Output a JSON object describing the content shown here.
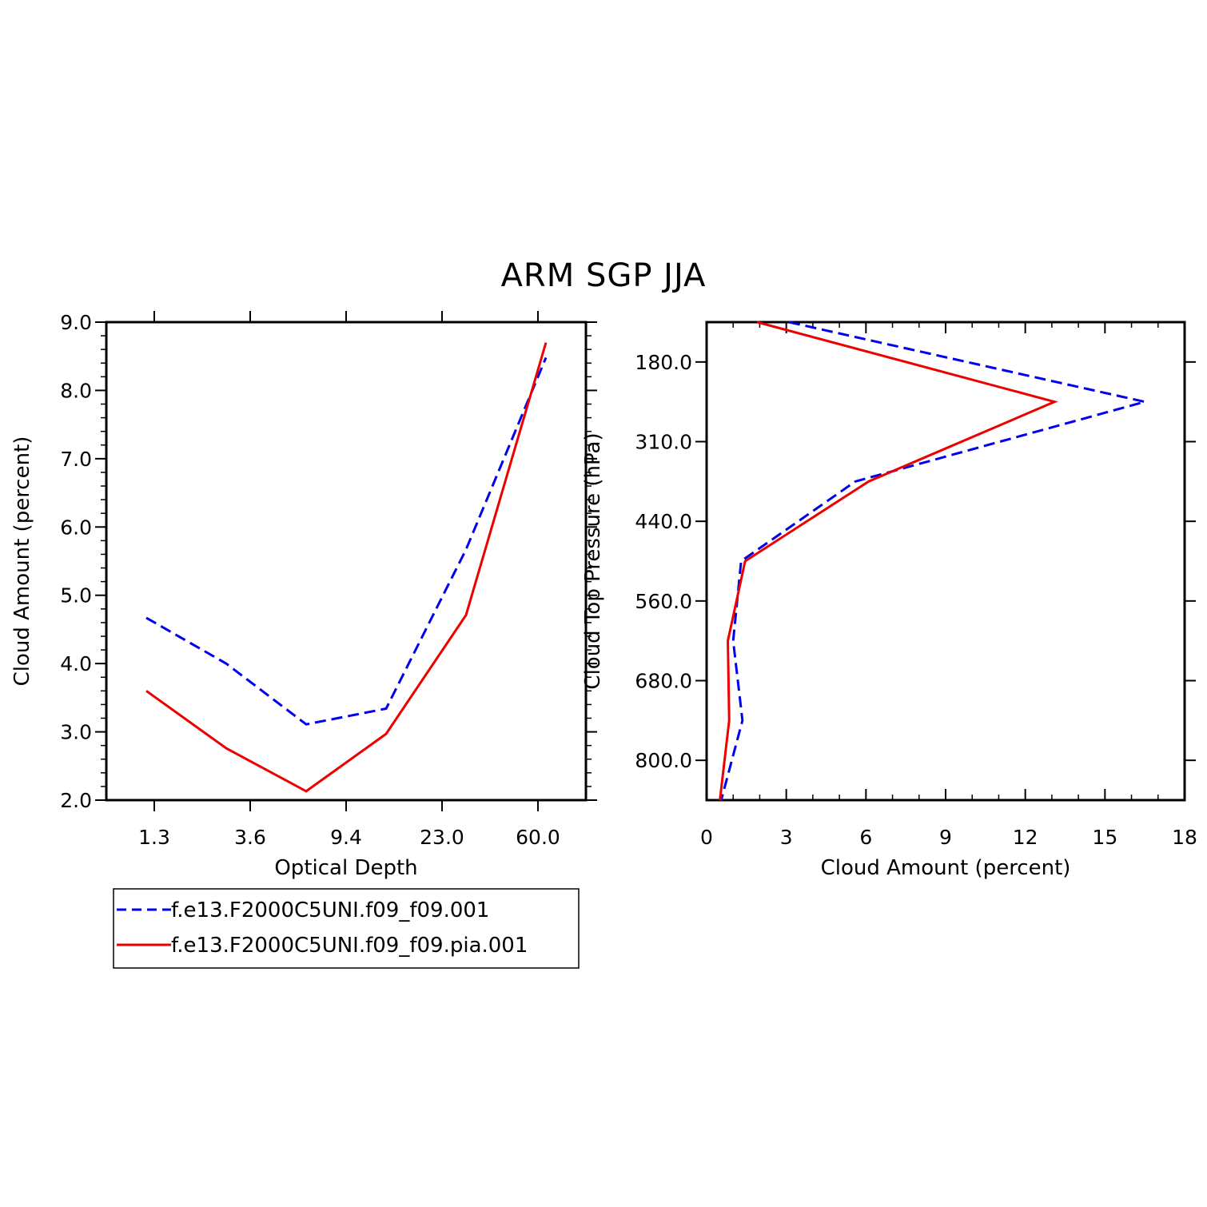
{
  "title": "ARM SGP JJA",
  "legend": {
    "position": "bottom-left",
    "entries": [
      {
        "label": "f.e13.F2000C5UNI.f09_f09.001",
        "color": "#0000ee",
        "style": "dashed"
      },
      {
        "label": "f.e13.F2000C5UNI.f09_f09.pia.001",
        "color": "#ee0000",
        "style": "solid"
      }
    ]
  },
  "chart_data": [
    {
      "type": "line",
      "xlabel": "Optical Depth",
      "ylabel": "Cloud Amount (percent)",
      "ylim": [
        2.0,
        9.0
      ],
      "y_ticks": [
        "2.0",
        "3.0",
        "4.0",
        "5.0",
        "6.0",
        "7.0",
        "8.0",
        "9.0"
      ],
      "x_ticks": [
        "1.3",
        "3.6",
        "9.4",
        "23.0",
        "60.0"
      ],
      "x_index": [
        0,
        1,
        2,
        3,
        4,
        5
      ],
      "series": [
        {
          "name": "f.e13.F2000C5UNI.f09_f09.001",
          "color": "#0000ee",
          "dashed": true,
          "values": [
            4.67,
            4.0,
            3.11,
            3.34,
            5.67,
            8.48
          ]
        },
        {
          "name": "f.e13.F2000C5UNI.f09_f09.pia.001",
          "color": "#ee0000",
          "dashed": false,
          "values": [
            3.6,
            2.76,
            2.13,
            2.97,
            4.71,
            8.7
          ]
        }
      ]
    },
    {
      "type": "line",
      "xlabel": "Cloud Amount (percent)",
      "ylabel": "Cloud Top Pressure (hPa)",
      "xlim": [
        0,
        18
      ],
      "x_ticks": [
        "0",
        "3",
        "6",
        "9",
        "12",
        "15",
        "18"
      ],
      "y_ticks": [
        "180.0",
        "310.0",
        "440.0",
        "560.0",
        "680.0",
        "800.0"
      ],
      "y_index": [
        0,
        1,
        2,
        3,
        4,
        5,
        6
      ],
      "series": [
        {
          "name": "f.e13.F2000C5UNI.f09_f09.001",
          "color": "#0000ee",
          "dashed": true,
          "values": [
            3.1,
            16.5,
            5.6,
            1.3,
            1.0,
            1.35,
            0.55
          ]
        },
        {
          "name": "f.e13.F2000C5UNI.f09_f09.pia.001",
          "color": "#ee0000",
          "dashed": false,
          "values": [
            1.9,
            13.1,
            6.1,
            1.45,
            0.8,
            0.85,
            0.5
          ]
        }
      ]
    }
  ]
}
